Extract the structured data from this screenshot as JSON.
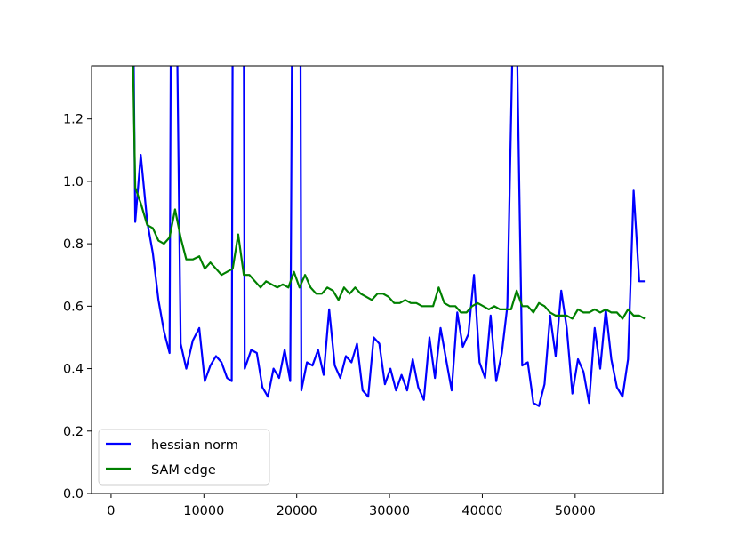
{
  "chart_data": {
    "type": "line",
    "title": "",
    "xlabel": "",
    "ylabel": "",
    "xlim": [
      -2100,
      59500
    ],
    "ylim": [
      0.0,
      1.37
    ],
    "xticks": [
      0,
      10000,
      20000,
      30000,
      40000,
      50000
    ],
    "xtick_labels": [
      "0",
      "10000",
      "20000",
      "30000",
      "40000",
      "50000"
    ],
    "yticks": [
      0.0,
      0.2,
      0.4,
      0.6,
      0.8,
      1.0,
      1.2
    ],
    "ytick_labels": [
      "0.0",
      "0.2",
      "0.4",
      "0.6",
      "0.8",
      "1.0",
      "1.2"
    ],
    "grid": false,
    "legend_position": "lower-left",
    "series": [
      {
        "name": "hessian norm",
        "color": "#0000ff",
        "x": [
          2400,
          2600,
          3200,
          3900,
          4500,
          5100,
          5700,
          6300,
          6450,
          7100,
          7500,
          8100,
          8800,
          9500,
          10100,
          10700,
          11300,
          11900,
          12500,
          13000,
          13100,
          14300,
          14400,
          15100,
          15700,
          16300,
          16900,
          17500,
          18100,
          18700,
          19300,
          19500,
          20400,
          20500,
          21100,
          21700,
          22300,
          22900,
          23500,
          24100,
          24700,
          25300,
          25900,
          26500,
          27100,
          27700,
          28300,
          28900,
          29500,
          30100,
          30700,
          31300,
          31900,
          32500,
          33100,
          33700,
          34300,
          34900,
          35500,
          36100,
          36700,
          37300,
          37900,
          38500,
          39100,
          39700,
          40300,
          40900,
          41500,
          42100,
          42700,
          43300,
          43700,
          44300,
          44900,
          45500,
          46100,
          46700,
          47300,
          47900,
          48500,
          49100,
          49700,
          50300,
          50900,
          51500,
          52100,
          52700,
          53300,
          53900,
          54500,
          55100,
          55700,
          56300,
          56900,
          57500
        ],
        "y": [
          1.5,
          0.87,
          1.085,
          0.87,
          0.77,
          0.62,
          0.52,
          0.45,
          1.5,
          1.5,
          0.48,
          0.4,
          0.49,
          0.53,
          0.36,
          0.41,
          0.44,
          0.42,
          0.37,
          0.36,
          1.5,
          1.5,
          0.4,
          0.46,
          0.45,
          0.34,
          0.31,
          0.4,
          0.37,
          0.46,
          0.36,
          1.5,
          1.5,
          0.33,
          0.42,
          0.41,
          0.46,
          0.38,
          0.59,
          0.41,
          0.37,
          0.44,
          0.42,
          0.48,
          0.33,
          0.31,
          0.5,
          0.48,
          0.35,
          0.4,
          0.33,
          0.38,
          0.33,
          0.43,
          0.34,
          0.3,
          0.5,
          0.37,
          0.53,
          0.43,
          0.33,
          0.58,
          0.47,
          0.51,
          0.7,
          0.42,
          0.37,
          0.57,
          0.36,
          0.45,
          0.6,
          1.5,
          1.5,
          0.41,
          0.42,
          0.29,
          0.28,
          0.35,
          0.57,
          0.44,
          0.65,
          0.53,
          0.32,
          0.43,
          0.39,
          0.29,
          0.53,
          0.4,
          0.59,
          0.43,
          0.34,
          0.31,
          0.43,
          0.97,
          0.68,
          0.68
        ]
      },
      {
        "name": "SAM edge",
        "color": "#008000",
        "x": [
          2300,
          2600,
          3200,
          3900,
          4500,
          5100,
          5700,
          6300,
          6900,
          7500,
          8100,
          8800,
          9500,
          10100,
          10700,
          11300,
          11900,
          12500,
          13100,
          13700,
          14300,
          14900,
          15500,
          16100,
          16700,
          17300,
          17900,
          18500,
          19100,
          19700,
          20300,
          20900,
          21500,
          22100,
          22700,
          23300,
          23900,
          24500,
          25100,
          25700,
          26300,
          26900,
          27500,
          28100,
          28700,
          29300,
          29900,
          30500,
          31100,
          31700,
          32300,
          32900,
          33500,
          34100,
          34700,
          35300,
          35900,
          36500,
          37100,
          37700,
          38300,
          38900,
          39500,
          40100,
          40700,
          41300,
          41900,
          42500,
          43100,
          43700,
          44300,
          44900,
          45500,
          46100,
          46700,
          47300,
          47900,
          48500,
          49100,
          49700,
          50300,
          50900,
          51500,
          52100,
          52700,
          53300,
          53900,
          54500,
          55100,
          55700,
          56300,
          56900,
          57500
        ],
        "y": [
          1.5,
          0.98,
          0.93,
          0.86,
          0.85,
          0.81,
          0.8,
          0.82,
          0.91,
          0.82,
          0.75,
          0.75,
          0.76,
          0.72,
          0.74,
          0.72,
          0.7,
          0.71,
          0.72,
          0.83,
          0.7,
          0.7,
          0.68,
          0.66,
          0.68,
          0.67,
          0.66,
          0.67,
          0.66,
          0.71,
          0.66,
          0.7,
          0.66,
          0.64,
          0.64,
          0.66,
          0.65,
          0.62,
          0.66,
          0.64,
          0.66,
          0.64,
          0.63,
          0.62,
          0.64,
          0.64,
          0.63,
          0.61,
          0.61,
          0.62,
          0.61,
          0.61,
          0.6,
          0.6,
          0.6,
          0.66,
          0.61,
          0.6,
          0.6,
          0.58,
          0.58,
          0.6,
          0.61,
          0.6,
          0.59,
          0.6,
          0.59,
          0.59,
          0.59,
          0.65,
          0.6,
          0.6,
          0.58,
          0.61,
          0.6,
          0.58,
          0.57,
          0.57,
          0.57,
          0.56,
          0.59,
          0.58,
          0.58,
          0.59,
          0.58,
          0.59,
          0.58,
          0.58,
          0.56,
          0.59,
          0.57,
          0.57,
          0.56
        ]
      }
    ]
  }
}
